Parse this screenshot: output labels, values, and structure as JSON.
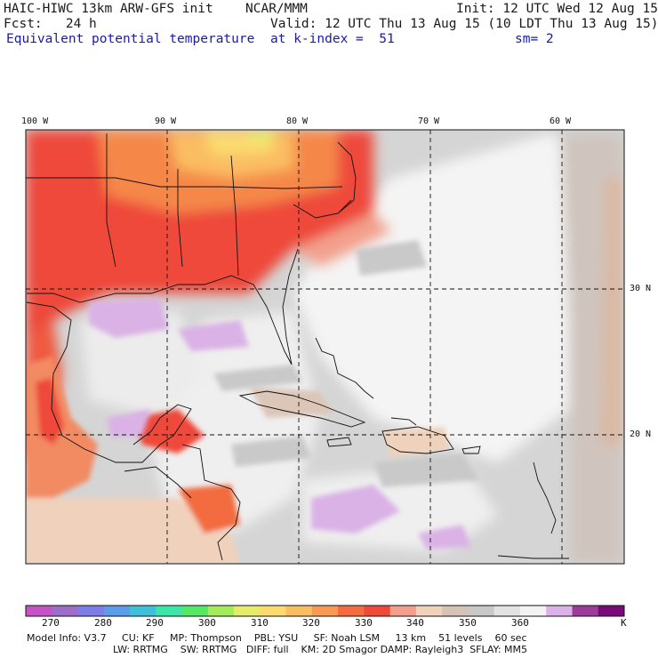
{
  "header": {
    "model": "HAIC-HIWC 13km ARW-GFS init",
    "org": "NCAR/MMM",
    "init": "Init: 12 UTC Wed 12 Aug 15",
    "fcst": "Fcst:   24 h",
    "valid": "Valid: 12 UTC Thu 13 Aug 15 (10 LDT Thu 13 Aug 15)",
    "field": "Equivalent potential temperature",
    "level": "at k-index =  51",
    "smooth": "sm= 2"
  },
  "map": {
    "lon_labels": [
      "100 W",
      "90 W",
      "80 W",
      "70 W",
      "60 W"
    ],
    "lat_labels": [
      "30 N",
      "20 N"
    ]
  },
  "colorbar": {
    "colors": [
      "#c653c6",
      "#9c6ec9",
      "#7d7de8",
      "#5c9de9",
      "#3fc0d8",
      "#3ce6a9",
      "#54e866",
      "#a4ec5a",
      "#e6ec6a",
      "#fbdb70",
      "#fbbd62",
      "#f89a52",
      "#f26c3f",
      "#ee4a3a",
      "#f2a08c",
      "#f0d2bc",
      "#d7c2b6",
      "#c9c9c9",
      "#e3e3e3",
      "#f3f3f3",
      "#dab2e6",
      "#9c3b9c",
      "#7a0a7a"
    ],
    "labels": [
      "270",
      "280",
      "290",
      "300",
      "310",
      "320",
      "330",
      "340",
      "350",
      "360"
    ],
    "unit": "K"
  },
  "footer": {
    "line1": "Model Info: V3.7     CU: KF     MP: Thompson    PBL: YSU     SF: Noah LSM     13 km    51 levels    60 sec",
    "line2": "LW: RRTMG    SW: RRTMG   DIFF: full    KM: 2D Smagor DAMP: Rayleigh3  SFLAY: MM5"
  }
}
